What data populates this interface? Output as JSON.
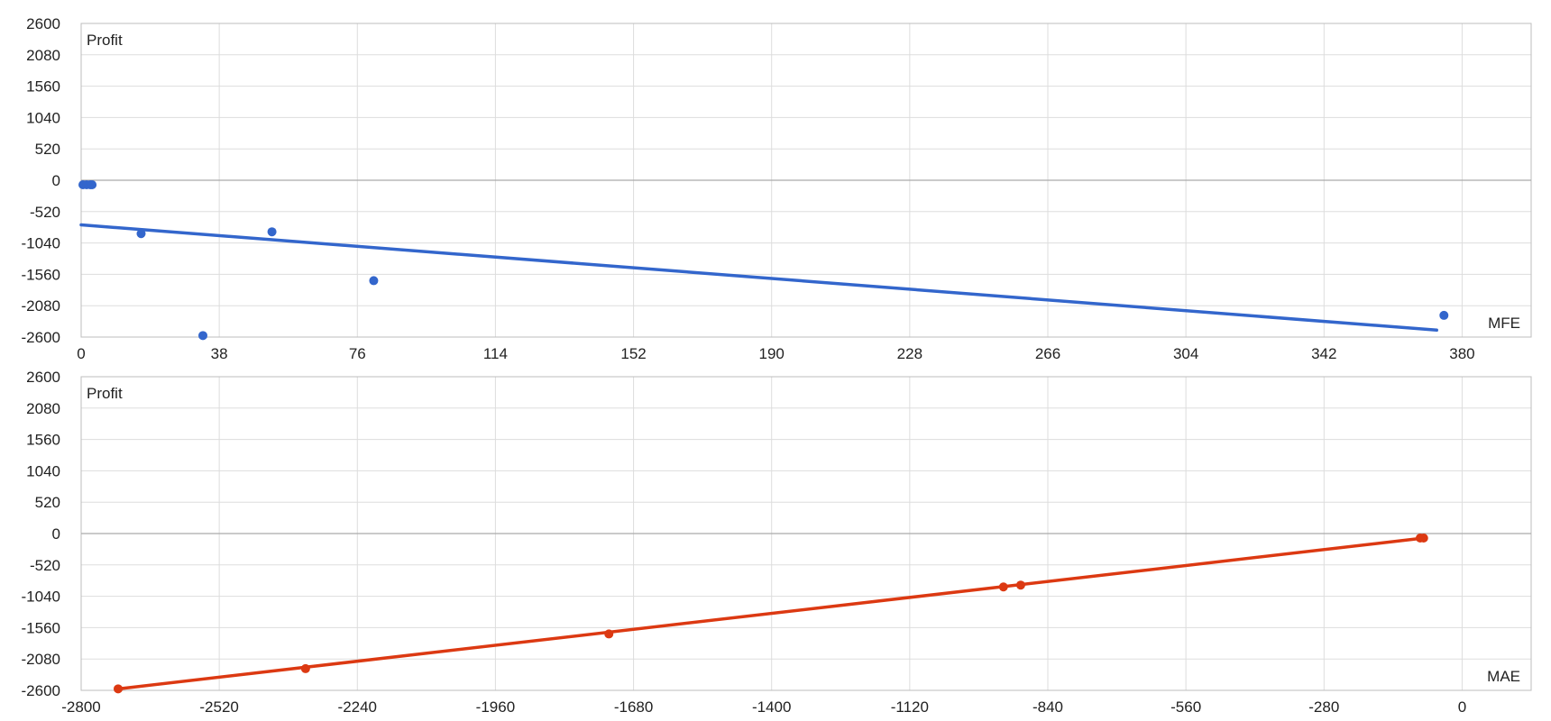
{
  "chart_data": [
    {
      "type": "scatter",
      "ylabel": "Profit",
      "xlabel": "MFE",
      "x_ticks": [
        "0",
        "38",
        "76",
        "114",
        "152",
        "190",
        "228",
        "266",
        "304",
        "342",
        "380"
      ],
      "y_ticks": [
        "2600",
        "2080",
        "1560",
        "1040",
        "520",
        "0",
        "-520",
        "-1040",
        "-1560",
        "-2080",
        "-2600"
      ],
      "xlim": [
        0,
        399
      ],
      "ylim": [
        -2600,
        2600
      ],
      "grid": true,
      "color": "#3366cc",
      "points": [
        {
          "x": 0.5,
          "y": -75
        },
        {
          "x": 1.5,
          "y": -75
        },
        {
          "x": 2.5,
          "y": -75
        },
        {
          "x": 3,
          "y": -75
        },
        {
          "x": 16.5,
          "y": -885
        },
        {
          "x": 33.5,
          "y": -2575
        },
        {
          "x": 52.5,
          "y": -855
        },
        {
          "x": 80.5,
          "y": -1665
        },
        {
          "x": 375,
          "y": -2240
        }
      ],
      "trendline": [
        {
          "x": 0,
          "y": -740
        },
        {
          "x": 373,
          "y": -2485
        }
      ]
    },
    {
      "type": "line",
      "ylabel": "Profit",
      "xlabel": "MAE",
      "x_ticks": [
        "-2800",
        "-2520",
        "-2240",
        "-1960",
        "-1680",
        "-1400",
        "-1120",
        "-840",
        "-560",
        "-280",
        "0"
      ],
      "y_ticks": [
        "2600",
        "2080",
        "1560",
        "1040",
        "520",
        "0",
        "-520",
        "-1040",
        "-1560",
        "-2080",
        "-2600"
      ],
      "xlim": [
        -2800,
        140
      ],
      "ylim": [
        -2600,
        2600
      ],
      "grid": true,
      "color": "#dc3912",
      "points": [
        {
          "x": -2725,
          "y": -2575
        },
        {
          "x": -2345,
          "y": -2240
        },
        {
          "x": -1730,
          "y": -1665
        },
        {
          "x": -930,
          "y": -885
        },
        {
          "x": -895,
          "y": -855
        },
        {
          "x": -85,
          "y": -75
        },
        {
          "x": -78,
          "y": -75
        }
      ],
      "trendline": [
        {
          "x": -2725,
          "y": -2575
        },
        {
          "x": -78,
          "y": -75
        }
      ]
    }
  ]
}
